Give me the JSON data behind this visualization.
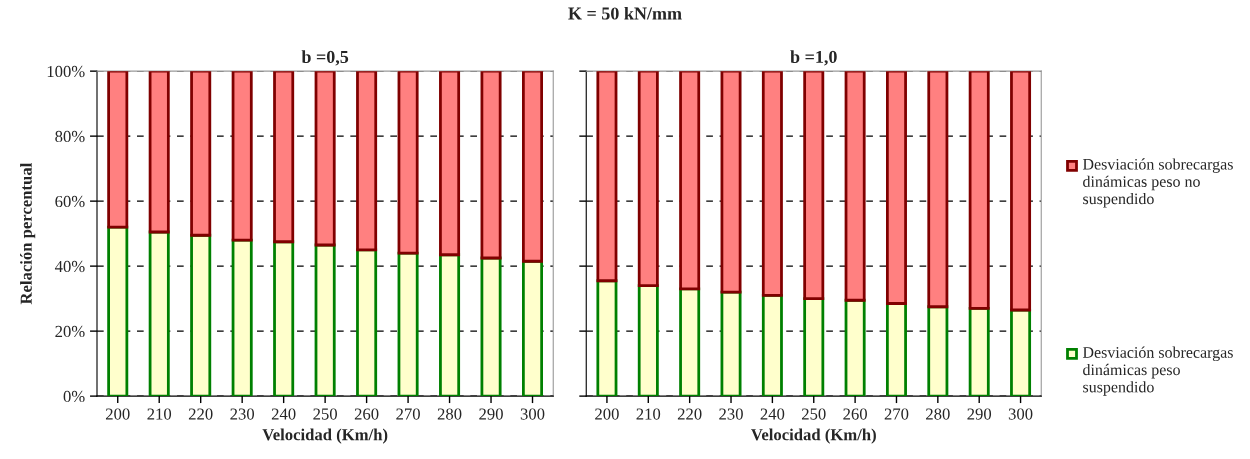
{
  "chart_data": [
    {
      "type": "bar",
      "stacked": true,
      "annotations": [
        "K = 50 kN/mm"
      ],
      "title": "b =0,5",
      "xlabel": "Velocidad (Km/h)",
      "ylabel": "Relación percentual",
      "categories": [
        "200",
        "210",
        "220",
        "230",
        "240",
        "250",
        "260",
        "270",
        "280",
        "290",
        "300"
      ],
      "series": [
        {
          "color": "#ffffcc",
          "values": [
            52,
            50.5,
            49.5,
            48,
            47.5,
            46.5,
            45,
            44,
            43.5,
            42.5,
            41.5
          ]
        },
        {
          "color": "#ff8080",
          "values": [
            48,
            49.5,
            50.5,
            52,
            52.5,
            53.5,
            55,
            56,
            56.5,
            57.5,
            58.5
          ]
        }
      ],
      "ylim": [
        0,
        100
      ],
      "yticks": [
        {
          "value": 0,
          "label": "0%"
        },
        {
          "value": 20,
          "label": "20%"
        },
        {
          "value": 40,
          "label": "40%"
        },
        {
          "value": 60,
          "label": "60%"
        },
        {
          "value": 80,
          "label": "80%"
        },
        {
          "value": 100,
          "label": "100%"
        }
      ],
      "grid": "y",
      "legend": false
    },
    {
      "type": "bar",
      "stacked": true,
      "title": "b =1,0",
      "xlabel": "Velocidad (Km/h)",
      "categories": [
        "200",
        "210",
        "220",
        "230",
        "240",
        "250",
        "260",
        "270",
        "280",
        "290",
        "300"
      ],
      "series": [
        {
          "name": "Desviación sobrecargas dinámicas peso suspendido",
          "color": "#ffffcc",
          "values": [
            35.5,
            34,
            33,
            32,
            31,
            30,
            29.5,
            28.5,
            27.5,
            27,
            26.5
          ]
        },
        {
          "name": "Desviación sobrecargas dinámicas peso no suspendido",
          "color": "#ff8080",
          "values": [
            64.5,
            66,
            67,
            68,
            69,
            70,
            70.5,
            71.5,
            72.5,
            73,
            73.5
          ]
        }
      ],
      "ylim": [
        0,
        100
      ],
      "yticks": [
        0,
        20,
        40,
        60,
        80,
        100
      ],
      "tick_labels": "x",
      "grid": "y",
      "legend": "right"
    }
  ]
}
